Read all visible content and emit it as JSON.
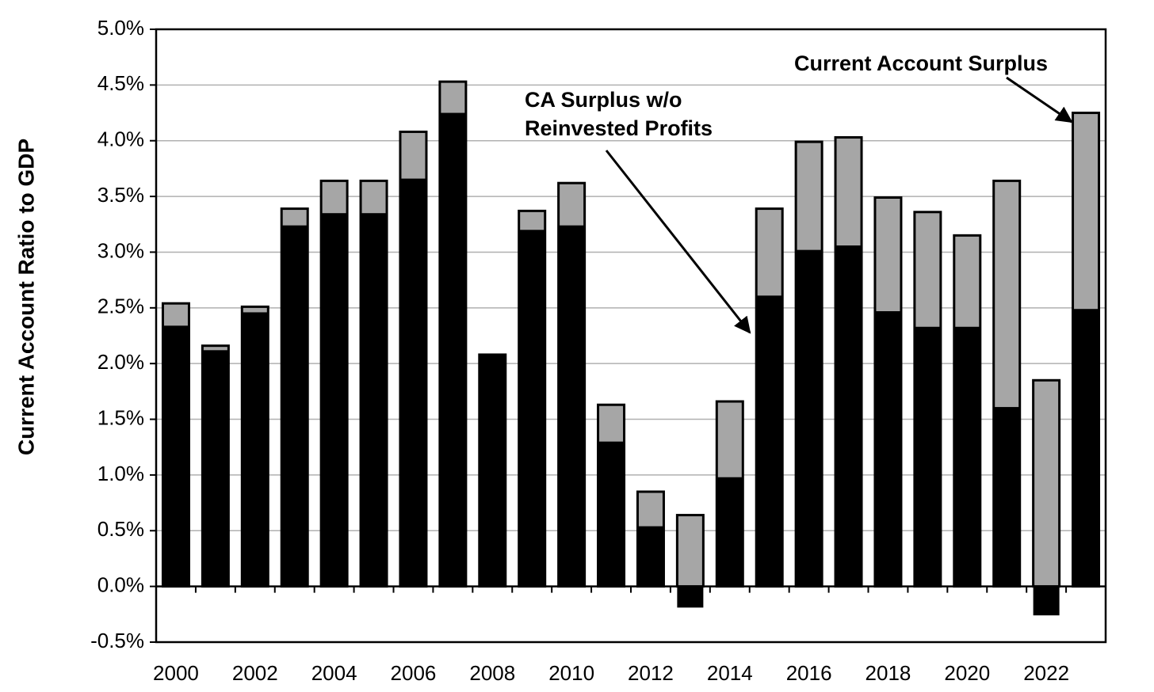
{
  "chart_data": {
    "type": "bar",
    "overlap": true,
    "y_axis_label": "Current Account Ratio to GDP",
    "categories": [
      "2000",
      null,
      "2002",
      null,
      "2004",
      null,
      "2006",
      null,
      "2008",
      null,
      "2010",
      null,
      "2012",
      null,
      "2014",
      null,
      "2016",
      null,
      "2018",
      null,
      "2020",
      null,
      "2022",
      null
    ],
    "series": [
      {
        "name": "Current Account Surplus",
        "color": "#a6a6a6",
        "values": [
          2.54,
          2.16,
          2.51,
          3.39,
          3.64,
          3.64,
          4.08,
          4.53,
          2.08,
          3.37,
          3.62,
          1.63,
          0.85,
          0.64,
          1.66,
          3.39,
          3.99,
          4.03,
          3.49,
          3.36,
          3.15,
          3.64,
          1.85,
          4.25
        ]
      },
      {
        "name": "CA Surplus w/o Reinvested Profits",
        "color": "#000000",
        "values": [
          2.34,
          2.12,
          2.46,
          3.24,
          3.35,
          3.35,
          3.66,
          4.25,
          2.08,
          3.2,
          3.24,
          1.3,
          0.54,
          -0.19,
          0.98,
          2.61,
          3.02,
          3.06,
          2.47,
          2.33,
          2.33,
          1.61,
          -0.26,
          2.49
        ]
      }
    ],
    "ylim": [
      -0.5,
      5.0
    ],
    "yticks": [
      {
        "value": -0.5,
        "label": "-0.5%"
      },
      {
        "value": 0,
        "label": "0.0%"
      },
      {
        "value": 0.5,
        "label": "0.5%"
      },
      {
        "value": 1.0,
        "label": "1.0%"
      },
      {
        "value": 1.5,
        "label": "1.5%"
      },
      {
        "value": 2.0,
        "label": "2.0%"
      },
      {
        "value": 2.5,
        "label": "2.5%"
      },
      {
        "value": 3.0,
        "label": "3.0%"
      },
      {
        "value": 3.5,
        "label": "3.5%"
      },
      {
        "value": 4.0,
        "label": "4.0%"
      },
      {
        "value": 4.5,
        "label": "4.5%"
      },
      {
        "value": 5.0,
        "label": "5.0%"
      }
    ],
    "grid": true
  }
}
